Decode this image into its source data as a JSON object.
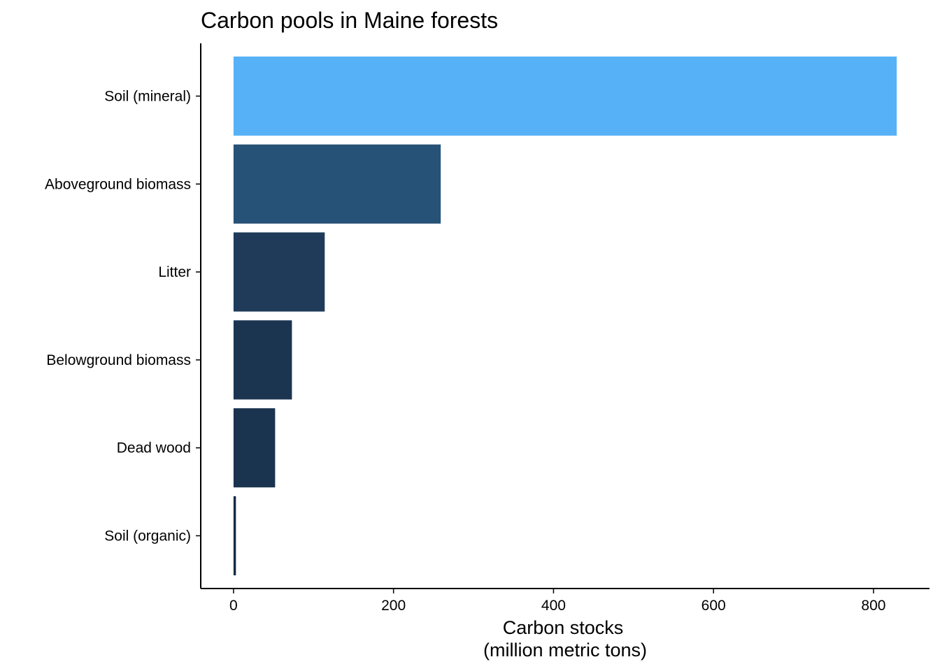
{
  "chart_data": {
    "type": "bar",
    "orientation": "horizontal",
    "title": "Carbon pools in Maine forests",
    "xlabel": [
      "Carbon stocks",
      "(million metric tons)"
    ],
    "ylabel": "",
    "categories": [
      "Soil (mineral)",
      "Aboveground biomass",
      "Litter",
      "Belowground biomass",
      "Dead wood",
      "Soil (organic)"
    ],
    "values": [
      829,
      259,
      114,
      73,
      52,
      3
    ],
    "colors": [
      "#56b1f7",
      "#275277",
      "#1f3b59",
      "#1b3551",
      "#1a334e",
      "#132b43"
    ],
    "xlim": [
      -41,
      870
    ],
    "xticks": [
      0,
      200,
      400,
      600,
      800
    ],
    "grid": false,
    "legend": "none"
  }
}
